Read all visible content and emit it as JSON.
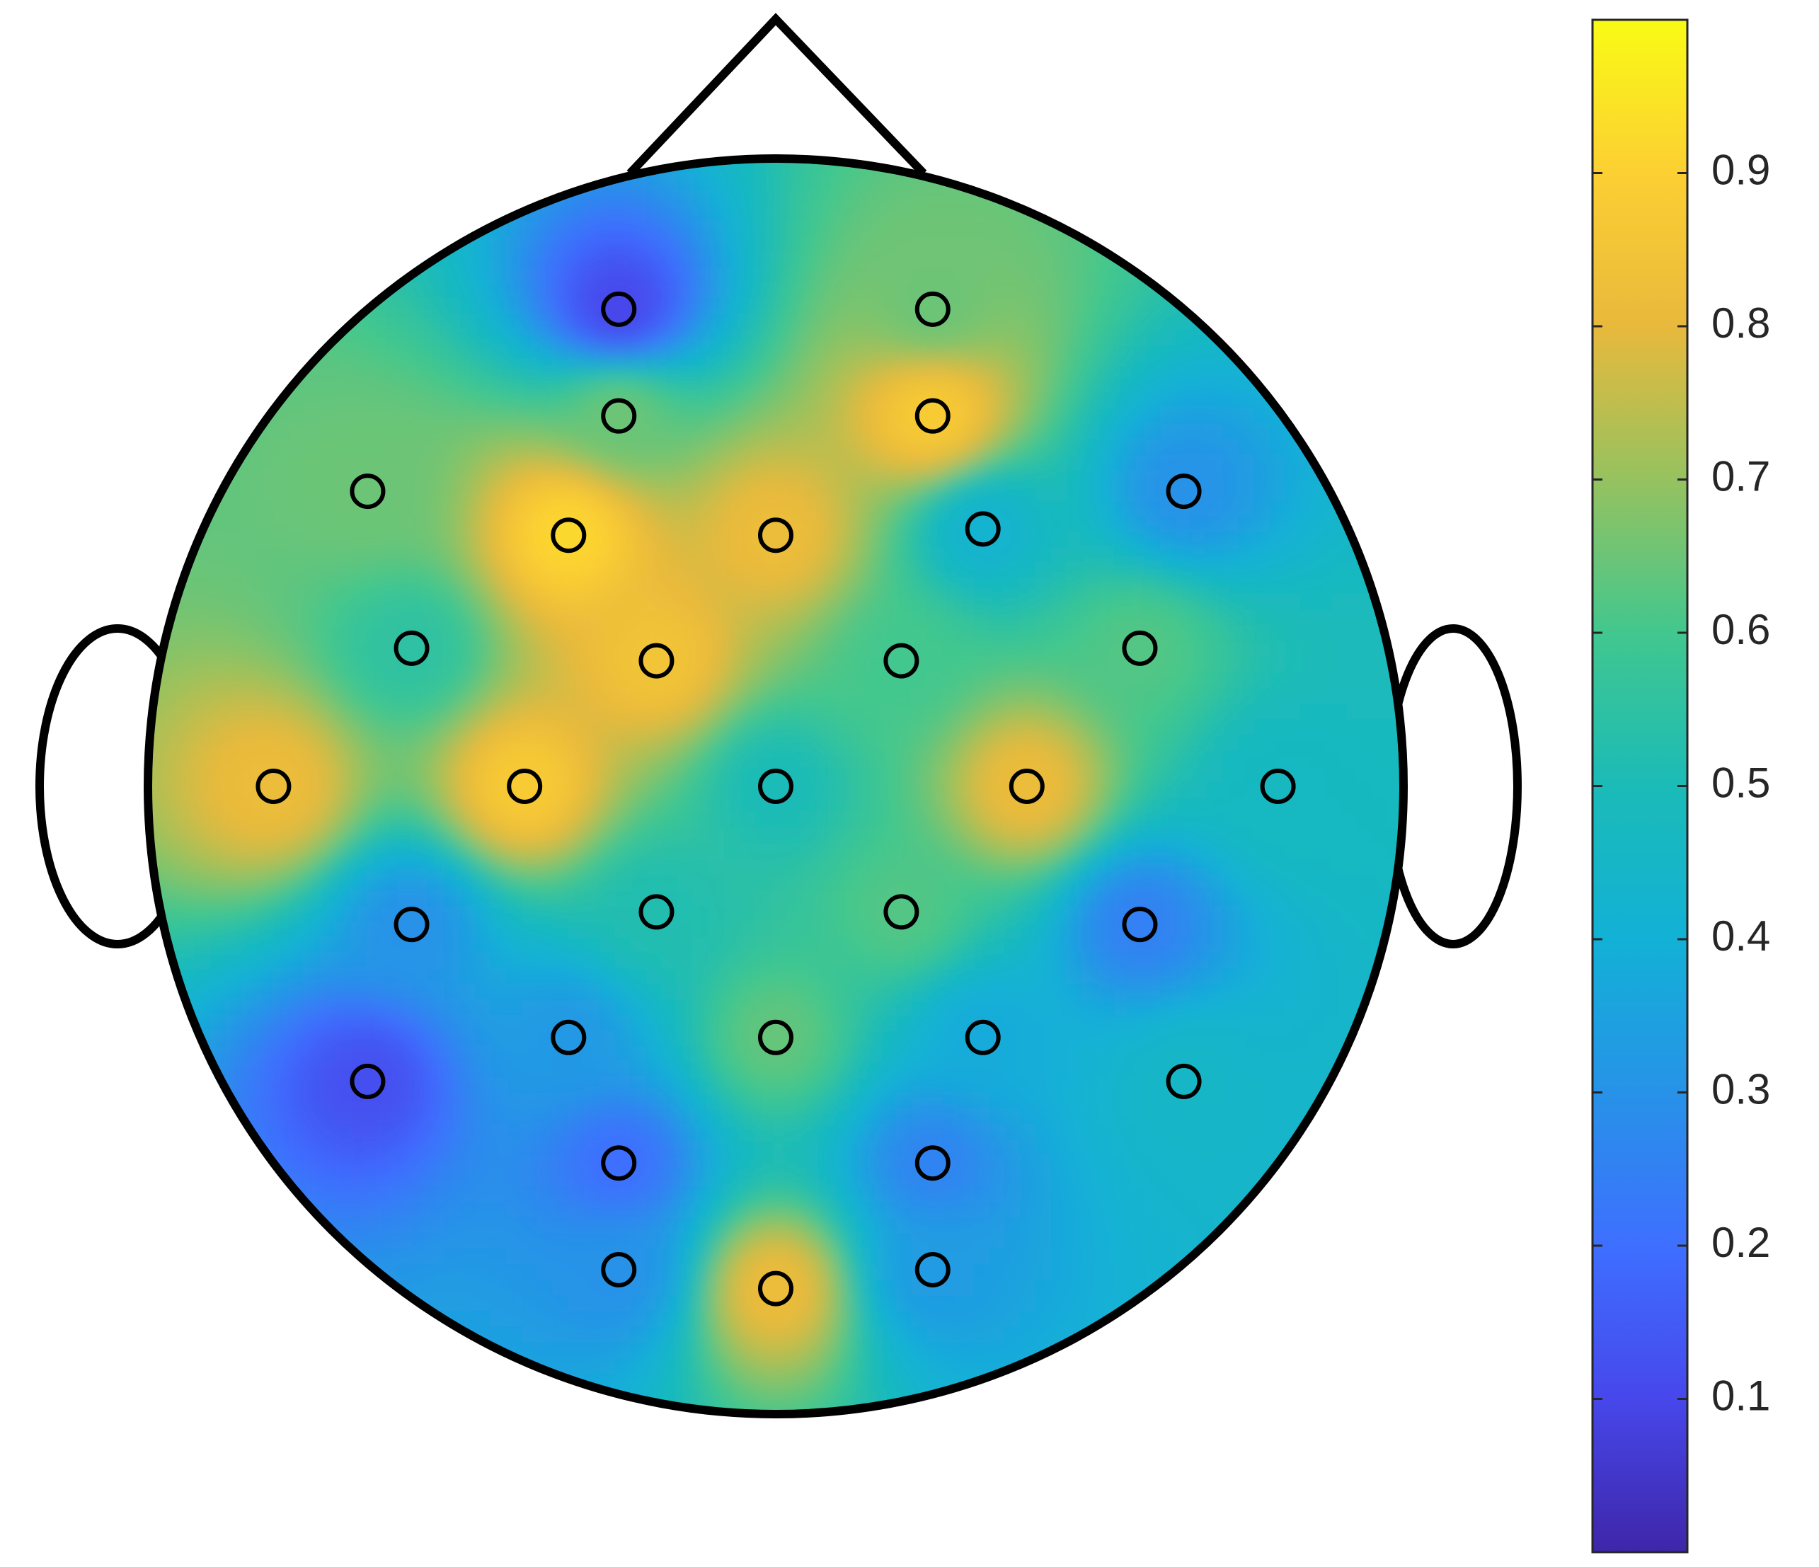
{
  "chart_data": {
    "type": "topoplot",
    "x": [
      -0.25,
      0.25,
      -0.25,
      0.25,
      -0.65,
      -0.33,
      0,
      0.33,
      0.65,
      -0.58,
      -0.19,
      0.2,
      0.58,
      -0.8,
      -0.4,
      0,
      0.4,
      0.8,
      -0.58,
      -0.19,
      0.2,
      0.58,
      -0.33,
      0,
      0.33,
      -0.65,
      0.65,
      -0.25,
      0.25,
      -0.25,
      0.25,
      0
    ],
    "y": [
      0.76,
      0.76,
      0.59,
      0.59,
      0.47,
      0.4,
      0.4,
      0.41,
      0.47,
      0.22,
      0.2,
      0.2,
      0.22,
      0,
      0,
      0,
      0,
      0,
      -0.22,
      -0.2,
      -0.2,
      -0.22,
      -0.4,
      -0.4,
      -0.4,
      -0.47,
      -0.47,
      -0.6,
      -0.6,
      -0.77,
      -0.77,
      -0.8
    ],
    "values": [
      0.1,
      0.65,
      0.65,
      0.88,
      0.65,
      0.92,
      0.82,
      0.42,
      0.3,
      0.55,
      0.85,
      0.6,
      0.62,
      0.82,
      0.88,
      0.5,
      0.82,
      0.47,
      0.3,
      0.52,
      0.62,
      0.25,
      0.32,
      0.64,
      0.38,
      0.12,
      0.45,
      0.2,
      0.26,
      0.3,
      0.33,
      0.82
    ],
    "clim": [
      0,
      1
    ],
    "cticks": [
      0.1,
      0.2,
      0.3,
      0.4,
      0.5,
      0.6,
      0.7,
      0.8,
      0.9
    ],
    "colormap": [
      "#3e26a8",
      "#4747eb",
      "#3e6fff",
      "#2792e8",
      "#12b1d6",
      "#1bbbb8",
      "#42c78e",
      "#96c25f",
      "#e8b93c",
      "#fccf33",
      "#f9fb15"
    ]
  }
}
